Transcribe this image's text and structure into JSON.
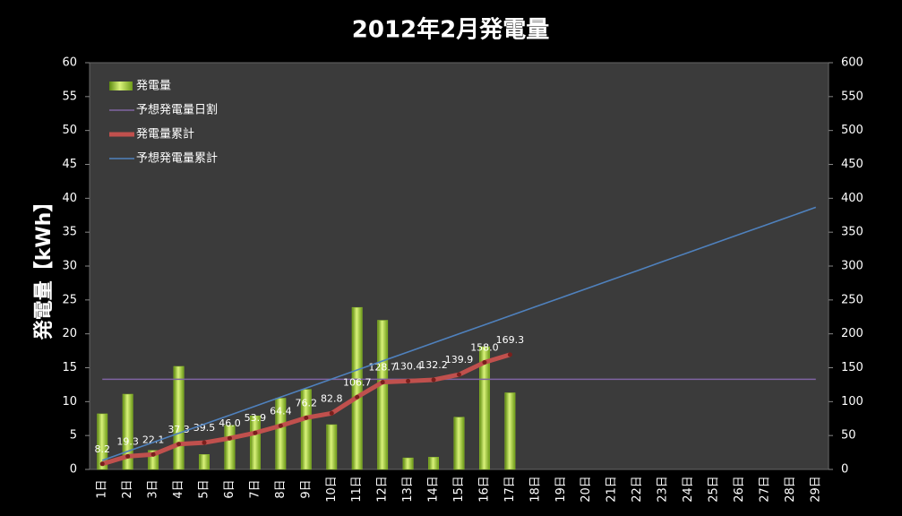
{
  "chart_data": {
    "type": "combo",
    "title": "2012年2月発電量",
    "y_label": "発電量【kWh】",
    "categories": [
      "1日",
      "2日",
      "3日",
      "4日",
      "5日",
      "6日",
      "7日",
      "8日",
      "9日",
      "10日",
      "11日",
      "12日",
      "13日",
      "14日",
      "15日",
      "16日",
      "17日",
      "18日",
      "19日",
      "20日",
      "21日",
      "22日",
      "23日",
      "24日",
      "25日",
      "26日",
      "27日",
      "28日",
      "29日"
    ],
    "ylim": [
      0,
      60
    ],
    "yticks": [
      0,
      5,
      10,
      15,
      20,
      25,
      30,
      35,
      40,
      45,
      50,
      55,
      60
    ],
    "y2lim": [
      0,
      600
    ],
    "y2ticks": [
      0,
      50,
      100,
      150,
      200,
      250,
      300,
      350,
      400,
      450,
      500,
      550,
      600
    ],
    "legend": "top-left",
    "series": [
      {
        "name": "発電量",
        "type": "bar",
        "color": "#8fbf2a",
        "values": [
          8.2,
          11.1,
          2.8,
          15.2,
          2.2,
          6.5,
          7.9,
          10.5,
          11.8,
          6.6,
          23.9,
          22.0,
          1.7,
          1.8,
          7.7,
          18.1,
          11.3,
          null,
          null,
          null,
          null,
          null,
          null,
          null,
          null,
          null,
          null,
          null,
          null
        ]
      },
      {
        "name": "予想発電量日割",
        "type": "line",
        "color": "#8064a2",
        "values": [
          13.3,
          13.3,
          13.3,
          13.3,
          13.3,
          13.3,
          13.3,
          13.3,
          13.3,
          13.3,
          13.3,
          13.3,
          13.3,
          13.3,
          13.3,
          13.3,
          13.3,
          13.3,
          13.3,
          13.3,
          13.3,
          13.3,
          13.3,
          13.3,
          13.3,
          13.3,
          13.3,
          13.3,
          13.3
        ]
      },
      {
        "name": "発電量累計",
        "type": "line",
        "axis": "y2",
        "color": "#c0504d",
        "values": [
          8.2,
          19.3,
          22.1,
          37.3,
          39.5,
          46.0,
          53.9,
          64.4,
          76.2,
          82.8,
          106.7,
          128.7,
          130.4,
          132.2,
          139.9,
          158.0,
          169.3,
          null,
          null,
          null,
          null,
          null,
          null,
          null,
          null,
          null,
          null,
          null,
          null
        ],
        "value_labels": [
          "8.2",
          "19.3",
          "22.1",
          "37.3",
          "39.5",
          "46.0",
          "53.9",
          "64.4",
          "76.2",
          "82.8",
          "106.7",
          "128.7",
          "130.4",
          "132.2",
          "139.9",
          "158.0",
          "169.3",
          null,
          null,
          null,
          null,
          null,
          null,
          null,
          null,
          null,
          null,
          null,
          null
        ]
      },
      {
        "name": "予想発電量累計",
        "type": "line",
        "axis": "y2",
        "color": "#4f81bd",
        "values": [
          13.3,
          26.7,
          40.0,
          53.3,
          66.7,
          80.0,
          93.3,
          106.7,
          120.0,
          133.3,
          146.7,
          160.0,
          173.3,
          186.7,
          200.0,
          213.3,
          226.7,
          240.0,
          253.3,
          266.7,
          280.0,
          293.3,
          306.7,
          320.0,
          333.3,
          346.7,
          360.0,
          373.3,
          386.7
        ]
      }
    ]
  }
}
